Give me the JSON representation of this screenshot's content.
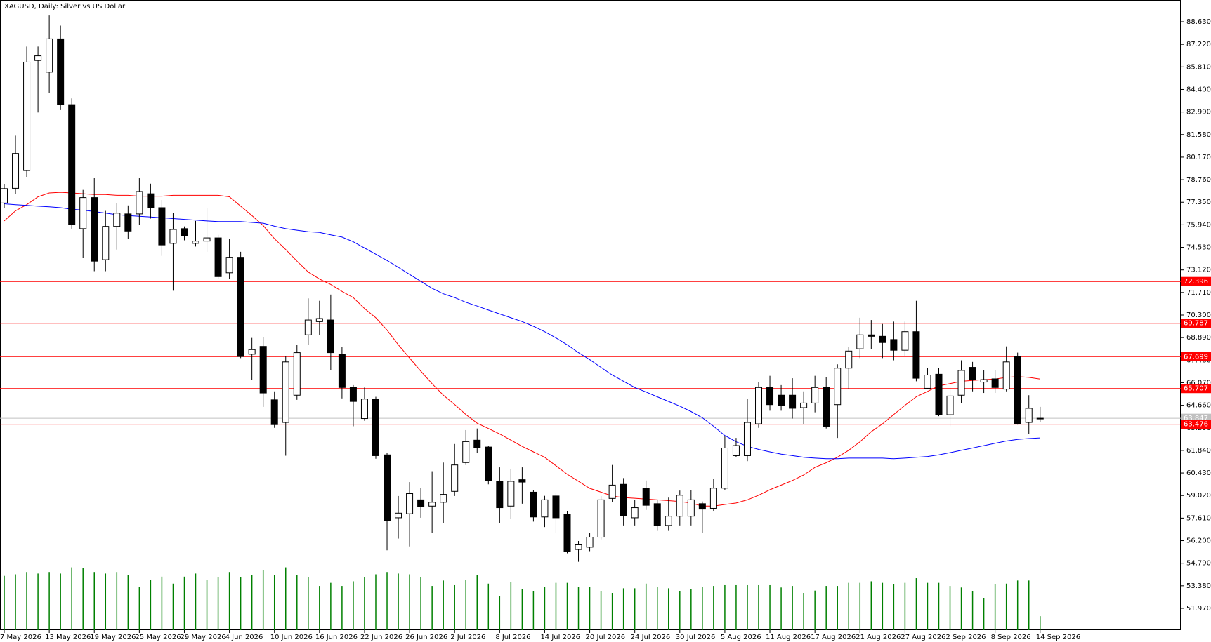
{
  "chart_data": {
    "type": "candlestick",
    "title": "XAGUSD, Daily:  Silver vs US Dollar",
    "categories": [
      "7 May 2026",
      null,
      null,
      null,
      "13 May 2026",
      null,
      null,
      null,
      "19 May 2026",
      null,
      null,
      null,
      "25 May 2026",
      null,
      null,
      null,
      "29 May 2026",
      null,
      null,
      null,
      "4 Jun 2026",
      null,
      null,
      null,
      "10 Jun 2026",
      null,
      null,
      null,
      "16 Jun 2026",
      null,
      null,
      null,
      "22 Jun 2026",
      null,
      null,
      null,
      "26 Jun 2026",
      null,
      null,
      null,
      "2 Jul 2026",
      null,
      null,
      null,
      "8 Jul 2026",
      null,
      null,
      null,
      "14 Jul 2026",
      null,
      null,
      null,
      "20 Jul 2026",
      null,
      null,
      null,
      "24 Jul 2026",
      null,
      null,
      null,
      "30 Jul 2026",
      null,
      null,
      null,
      "5 Aug 2026",
      null,
      null,
      null,
      "11 Aug 2026",
      null,
      null,
      null,
      "17 Aug 2026",
      null,
      null,
      null,
      "21 Aug 2026",
      null,
      null,
      null,
      "27 Aug 2026",
      null,
      null,
      null,
      "2 Sep 2026",
      null,
      null,
      null,
      "8 Sep 2026",
      null,
      null,
      null,
      "14 Sep 2026"
    ],
    "open": [
      77.3,
      78.22,
      79.33,
      86.21,
      85.48,
      87.56,
      83.45,
      75.7,
      77.64,
      73.76,
      75.84,
      76.62,
      76.62,
      77.88,
      77.01,
      74.78,
      75.7,
      74.78,
      74.92,
      75.12,
      72.94,
      73.91,
      67.85,
      68.34,
      65.0,
      63.59,
      65.29,
      69.06,
      69.89,
      69.99,
      67.85,
      65.77,
      63.83,
      65.05,
      61.56,
      57.63,
      57.88,
      58.75,
      58.36,
      58.6,
      59.28,
      61.08,
      62.48,
      62.05,
      59.91,
      58.36,
      60.01,
      59.23,
      57.68,
      58.99,
      57.83,
      55.65,
      55.79,
      56.42,
      58.84,
      59.72,
      57.63,
      59.48,
      58.51,
      57.15,
      57.73,
      57.73,
      58.51,
      58.22,
      59.48,
      61.51,
      61.51,
      63.5,
      65.77,
      65.29,
      65.29,
      64.51,
      64.8,
      65.77,
      64.7,
      66.98,
      68.19,
      69.06,
      68.97,
      68.77,
      68.1,
      69.26,
      65.72,
      66.6,
      64.07,
      65.29,
      67.03,
      66.11,
      66.31,
      65.67,
      67.71,
      63.59,
      63.84
    ],
    "high": [
      78.5,
      81.51,
      87.08,
      87.08,
      89.02,
      88.39,
      83.84,
      78.12,
      78.85,
      76.81,
      77.3,
      77.15,
      78.85,
      78.51,
      77.49,
      76.67,
      75.84,
      76.18,
      77.01,
      75.31,
      75.07,
      74.25,
      68.87,
      68.92,
      65.53,
      67.71,
      68.43,
      71.34,
      71.19,
      71.58,
      68.29,
      65.92,
      65.77,
      65.19,
      61.66,
      58.99,
      59.86,
      59.48,
      60.54,
      61.08,
      62.24,
      63.11,
      63.21,
      62.14,
      60.78,
      60.69,
      60.78,
      59.38,
      59.0,
      59.18,
      58.02,
      56.18,
      56.67,
      58.99,
      60.93,
      60.11,
      58.75,
      59.96,
      58.75,
      58.89,
      59.33,
      59.38,
      58.65,
      60.06,
      62.72,
      62.62,
      65.05,
      66.11,
      66.5,
      65.92,
      66.35,
      65.53,
      66.5,
      66.4,
      67.22,
      68.29,
      70.13,
      69.99,
      69.74,
      69.89,
      69.89,
      71.19,
      66.98,
      66.98,
      65.77,
      67.47,
      67.37,
      66.84,
      66.84,
      68.34,
      67.95,
      65.29,
      64.56
    ],
    "low": [
      77.0,
      77.88,
      78.94,
      82.96,
      84.17,
      83.11,
      75.7,
      73.86,
      73.04,
      73.04,
      74.39,
      75.07,
      75.94,
      76.33,
      74.0,
      71.82,
      74.97,
      74.58,
      74.25,
      72.55,
      72.55,
      67.61,
      66.26,
      64.56,
      63.25,
      61.51,
      65.0,
      68.43,
      69.06,
      66.84,
      65.09,
      63.35,
      63.69,
      61.32,
      55.6,
      56.33,
      55.84,
      57.63,
      56.67,
      57.3,
      58.99,
      60.93,
      61.66,
      59.72,
      57.3,
      57.54,
      58.51,
      57.39,
      57.05,
      56.67,
      55.41,
      54.88,
      55.5,
      56.28,
      58.6,
      57.15,
      57.15,
      58.12,
      56.81,
      56.81,
      57.15,
      57.15,
      56.67,
      58.02,
      59.38,
      61.41,
      61.17,
      63.25,
      64.32,
      64.32,
      63.83,
      63.5,
      64.22,
      63.21,
      62.62,
      65.67,
      67.61,
      68.19,
      67.61,
      67.47,
      67.71,
      66.16,
      65.67,
      63.98,
      63.35,
      64.8,
      65.53,
      65.43,
      65.43,
      65.53,
      63.45,
      62.86,
      63.59
    ],
    "close": [
      78.2,
      80.4,
      86.11,
      86.5,
      87.56,
      83.45,
      75.94,
      77.64,
      73.67,
      75.84,
      76.67,
      75.55,
      78.02,
      77.01,
      74.68,
      75.65,
      75.26,
      74.92,
      75.12,
      72.7,
      73.91,
      67.71,
      68.14,
      65.43,
      63.45,
      67.37,
      67.95,
      69.99,
      70.08,
      67.95,
      65.77,
      64.9,
      65.05,
      61.51,
      57.44,
      57.92,
      59.14,
      58.31,
      58.6,
      59.09,
      60.93,
      62.39,
      62.0,
      59.96,
      58.26,
      59.91,
      59.86,
      57.68,
      58.75,
      57.63,
      55.5,
      55.94,
      56.42,
      58.75,
      59.67,
      57.78,
      58.26,
      58.41,
      57.15,
      57.73,
      59.04,
      58.75,
      58.17,
      59.48,
      61.99,
      62.14,
      63.59,
      65.77,
      64.7,
      64.66,
      64.47,
      64.8,
      65.77,
      63.35,
      66.98,
      68.05,
      69.06,
      68.97,
      68.58,
      68.1,
      69.26,
      66.35,
      66.55,
      64.07,
      65.24,
      66.84,
      66.26,
      66.26,
      65.77,
      67.37,
      63.5,
      64.47,
      63.85
    ],
    "volume": [
      70,
      72,
      75,
      73,
      75,
      73,
      81,
      80,
      75,
      73,
      75,
      71,
      56,
      65,
      69,
      60,
      69,
      73,
      65,
      68,
      75,
      68,
      71,
      77,
      71,
      81,
      71,
      68,
      57,
      61,
      57,
      63,
      68,
      72,
      75,
      73,
      72,
      68,
      57,
      64,
      58,
      65,
      71,
      60,
      44,
      62,
      53,
      50,
      56,
      61,
      61,
      56,
      56,
      50,
      48,
      54,
      54,
      60,
      56,
      54,
      50,
      53,
      56,
      57,
      58,
      58,
      58,
      58,
      58,
      55,
      57,
      48,
      51,
      57,
      57,
      61,
      61,
      63,
      61,
      59,
      61,
      67,
      61,
      61,
      57,
      55,
      50,
      41,
      59,
      60,
      64,
      64,
      18
    ],
    "volume_color": "#008000",
    "series": [
      {
        "color": "#ff0000",
        "values": [
          76.18,
          76.81,
          77.2,
          77.69,
          77.93,
          77.97,
          77.93,
          77.88,
          77.83,
          77.83,
          77.78,
          77.78,
          77.73,
          77.73,
          77.73,
          77.78,
          77.78,
          77.78,
          77.78,
          77.78,
          77.69,
          77.1,
          76.52,
          75.89,
          75.07,
          74.39,
          73.67,
          72.99,
          72.55,
          72.21,
          71.78,
          71.39,
          70.71,
          70.13,
          69.36,
          68.44,
          67.61,
          66.79,
          66.01,
          65.29,
          64.71,
          64.08,
          63.54,
          63.21,
          62.87,
          62.48,
          62.09,
          61.75,
          61.41,
          60.88,
          60.35,
          59.91,
          59.47,
          59.23,
          58.99,
          58.89,
          58.85,
          58.8,
          58.75,
          58.7,
          58.65,
          58.55,
          58.36,
          58.36,
          58.46,
          58.55,
          58.75,
          59.04,
          59.38,
          59.67,
          59.96,
          60.3,
          60.78,
          61.07,
          61.41,
          61.85,
          62.38,
          63.01,
          63.5,
          64.08,
          64.66,
          65.19,
          65.53,
          65.87,
          66.01,
          66.16,
          66.21,
          66.26,
          66.3,
          66.4,
          66.45,
          66.4,
          66.3
        ]
      },
      {
        "color": "#0000ff",
        "values": [
          77.25,
          77.2,
          77.15,
          77.1,
          77.06,
          77.01,
          76.91,
          76.86,
          76.77,
          76.67,
          76.57,
          76.52,
          76.47,
          76.43,
          76.38,
          76.33,
          76.28,
          76.23,
          76.18,
          76.14,
          76.14,
          76.14,
          76.09,
          76.04,
          75.85,
          75.7,
          75.6,
          75.51,
          75.46,
          75.31,
          75.17,
          74.88,
          74.49,
          74.1,
          73.71,
          73.28,
          72.84,
          72.41,
          71.97,
          71.63,
          71.39,
          71.1,
          70.86,
          70.61,
          70.37,
          70.13,
          69.89,
          69.6,
          69.26,
          68.87,
          68.44,
          67.95,
          67.51,
          67.03,
          66.55,
          66.16,
          65.77,
          65.49,
          65.19,
          64.9,
          64.61,
          64.27,
          63.88,
          63.35,
          62.77,
          62.38,
          62.09,
          61.9,
          61.75,
          61.61,
          61.51,
          61.41,
          61.36,
          61.32,
          61.32,
          61.36,
          61.36,
          61.36,
          61.36,
          61.32,
          61.36,
          61.41,
          61.46,
          61.56,
          61.7,
          61.85,
          61.99,
          62.14,
          62.29,
          62.43,
          62.53,
          62.58,
          62.62
        ]
      }
    ],
    "levels": [
      72.396,
      69.787,
      67.699,
      65.707,
      63.476
    ],
    "level_color": "#ff0000",
    "last_price": 63.847,
    "ylim": [
      50.61,
      89.99
    ],
    "yticks": [
      {
        "value": 88.63,
        "label": "88.630"
      },
      {
        "value": 87.22,
        "label": "87.220"
      },
      {
        "value": 85.81,
        "label": "85.810"
      },
      {
        "value": 84.4,
        "label": "84.400"
      },
      {
        "value": 82.99,
        "label": "82.990"
      },
      {
        "value": 81.58,
        "label": "81.580"
      },
      {
        "value": 80.17,
        "label": "80.170"
      },
      {
        "value": 78.76,
        "label": "78.760"
      },
      {
        "value": 77.35,
        "label": "77.350"
      },
      {
        "value": 75.94,
        "label": "75.940"
      },
      {
        "value": 74.53,
        "label": "74.530"
      },
      {
        "value": 73.12,
        "label": "73.120"
      },
      {
        "value": 71.71,
        "label": "71.710"
      },
      {
        "value": 70.3,
        "label": "70.300"
      },
      {
        "value": 68.89,
        "label": "68.890"
      },
      {
        "value": 67.48,
        "label": "67.480"
      },
      {
        "value": 66.07,
        "label": "66.070"
      },
      {
        "value": 64.66,
        "label": "64.660"
      },
      {
        "value": 63.25,
        "label": "63.250"
      },
      {
        "value": 61.84,
        "label": "61.840"
      },
      {
        "value": 60.43,
        "label": "60.430"
      },
      {
        "value": 59.02,
        "label": "59.020"
      },
      {
        "value": 57.61,
        "label": "57.610"
      },
      {
        "value": 56.2,
        "label": "56.200"
      },
      {
        "value": 54.79,
        "label": "54.790"
      },
      {
        "value": 53.38,
        "label": "53.380"
      },
      {
        "value": 51.97,
        "label": "51.970"
      }
    ]
  }
}
